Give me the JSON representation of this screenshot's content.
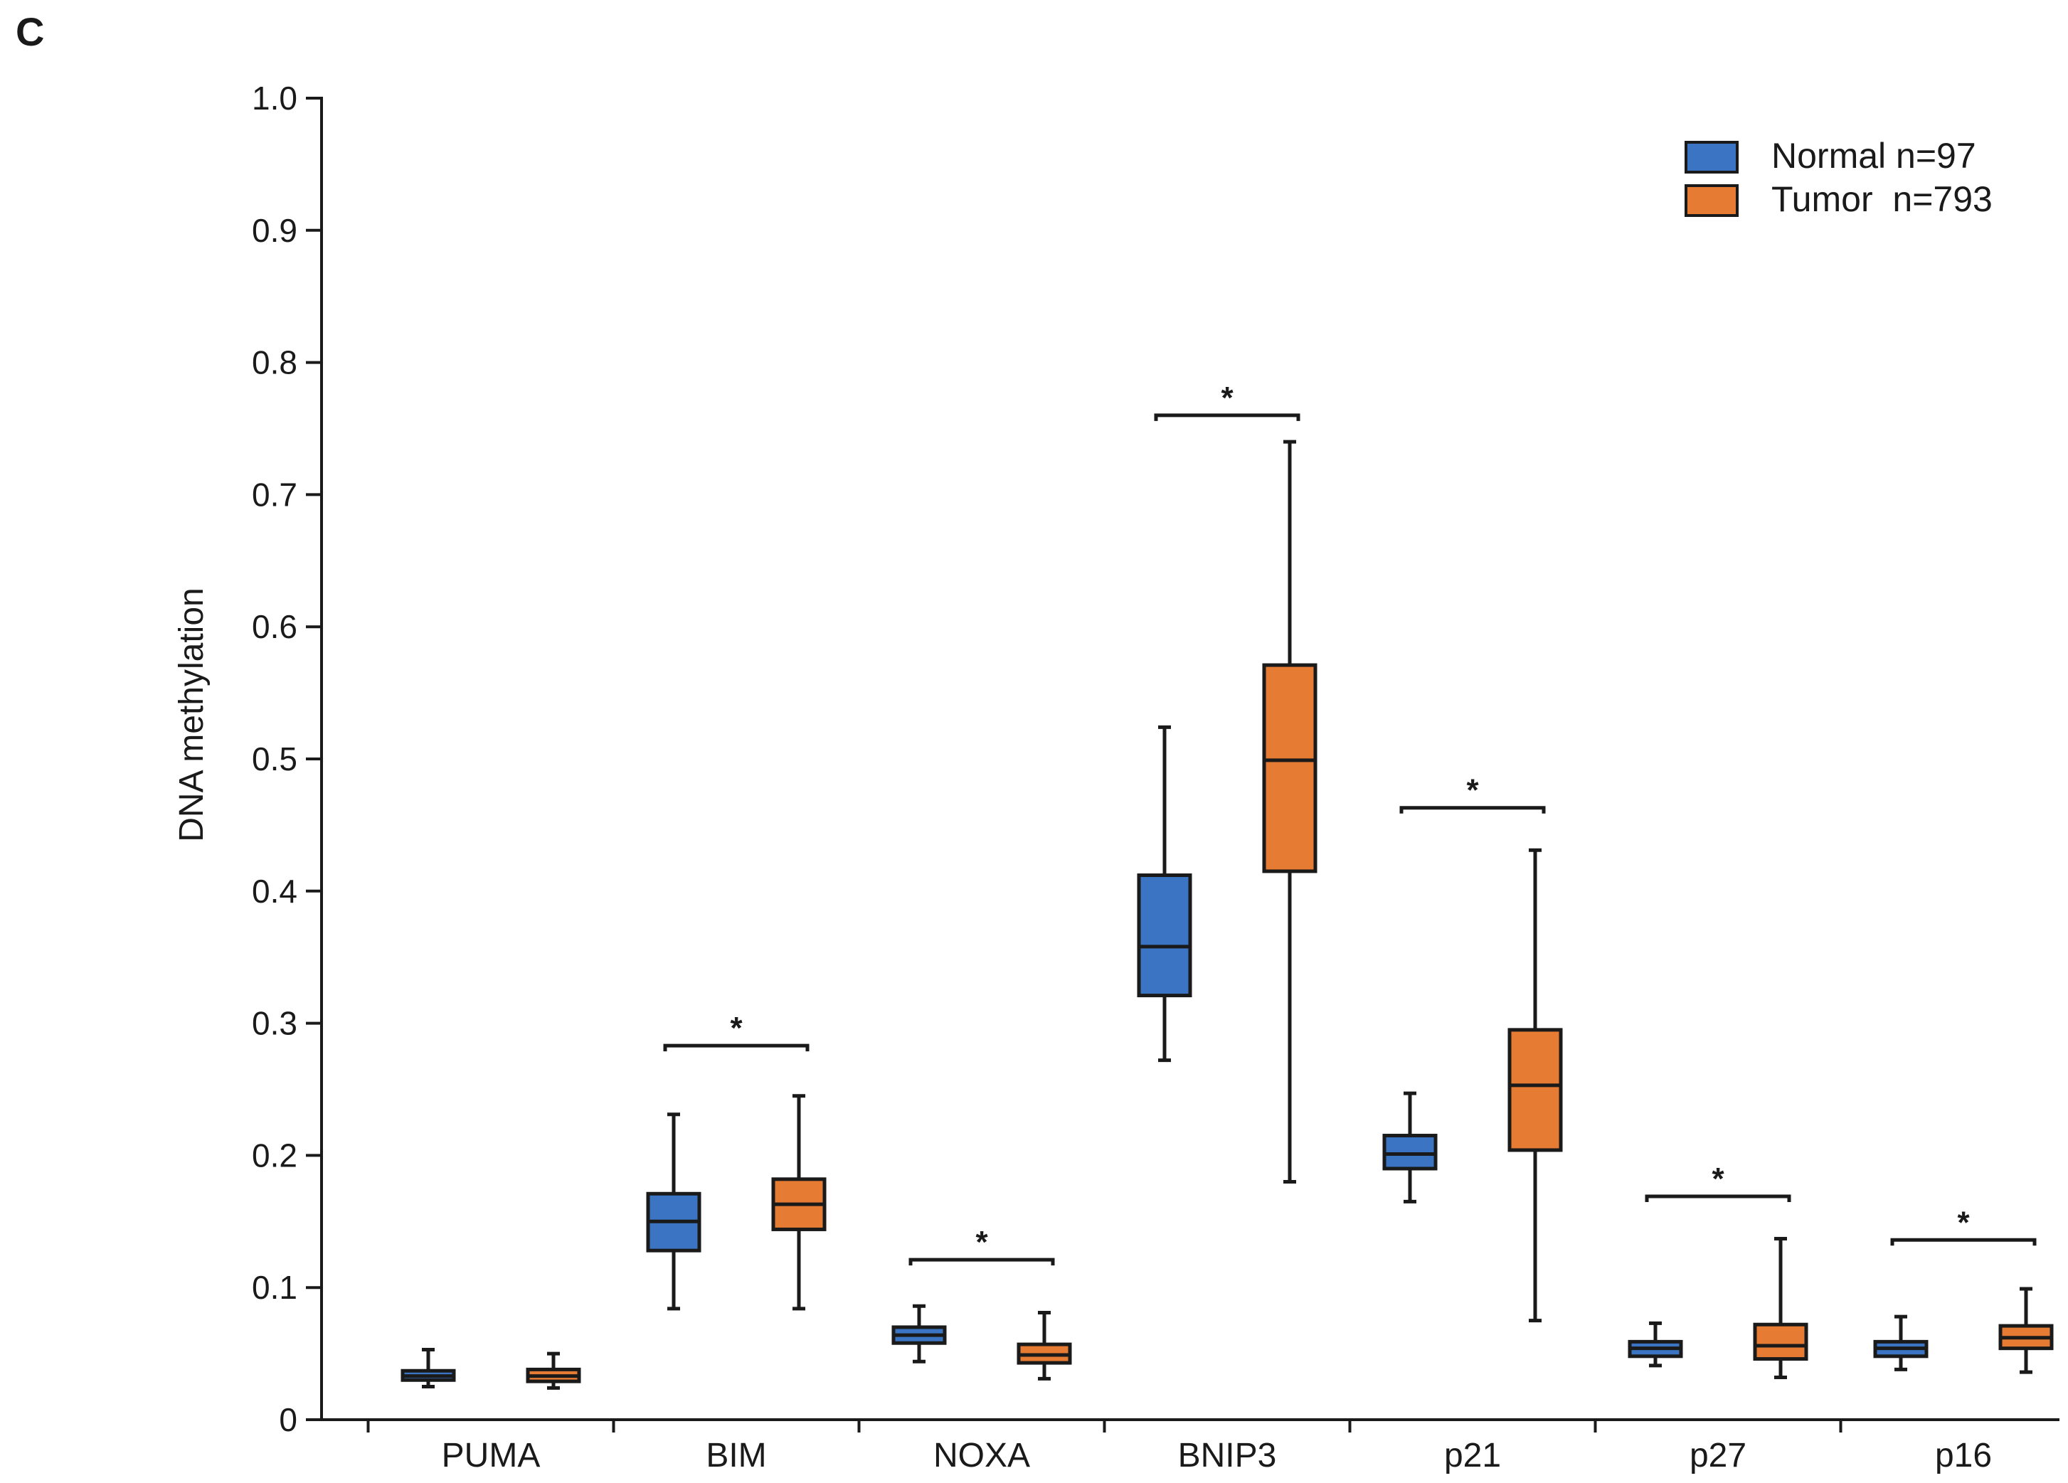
{
  "panel_label": "C",
  "chart_data": {
    "type": "box",
    "title": "",
    "xlabel": "",
    "ylabel": "DNA methylation",
    "ylim": [
      0,
      1.0
    ],
    "yticks": [
      "0",
      "0.1",
      "0.2",
      "0.3",
      "0.4",
      "0.5",
      "0.6",
      "0.7",
      "0.8",
      "0.9",
      "1.0"
    ],
    "ytick_values": [
      0,
      0.1,
      0.2,
      0.3,
      0.4,
      0.5,
      0.6,
      0.7,
      0.8,
      0.9,
      1.0
    ],
    "categories": [
      "PUMA",
      "BIM",
      "NOXA",
      "BNIP3",
      "p21",
      "p27",
      "p16"
    ],
    "legend_position": "top-right",
    "series": [
      {
        "name": "Normal",
        "legend_label": "Normal n=97",
        "color": "#3b74c2",
        "boxes": [
          {
            "min": 0.025,
            "q1": 0.03,
            "median": 0.033,
            "q3": 0.037,
            "max": 0.053
          },
          {
            "min": 0.084,
            "q1": 0.128,
            "median": 0.15,
            "q3": 0.171,
            "max": 0.231
          },
          {
            "min": 0.044,
            "q1": 0.058,
            "median": 0.064,
            "q3": 0.07,
            "max": 0.086
          },
          {
            "min": 0.272,
            "q1": 0.321,
            "median": 0.358,
            "q3": 0.412,
            "max": 0.524
          },
          {
            "min": 0.165,
            "q1": 0.19,
            "median": 0.201,
            "q3": 0.215,
            "max": 0.247
          },
          {
            "min": 0.041,
            "q1": 0.048,
            "median": 0.054,
            "q3": 0.059,
            "max": 0.073
          },
          {
            "min": 0.038,
            "q1": 0.048,
            "median": 0.054,
            "q3": 0.059,
            "max": 0.078
          }
        ]
      },
      {
        "name": "Tumor",
        "legend_label": "Tumor  n=793",
        "color": "#e67b33",
        "boxes": [
          {
            "min": 0.024,
            "q1": 0.029,
            "median": 0.033,
            "q3": 0.038,
            "max": 0.05
          },
          {
            "min": 0.084,
            "q1": 0.144,
            "median": 0.163,
            "q3": 0.182,
            "max": 0.245
          },
          {
            "min": 0.031,
            "q1": 0.043,
            "median": 0.049,
            "q3": 0.057,
            "max": 0.081
          },
          {
            "min": 0.18,
            "q1": 0.415,
            "median": 0.499,
            "q3": 0.571,
            "max": 0.74
          },
          {
            "min": 0.075,
            "q1": 0.204,
            "median": 0.253,
            "q3": 0.295,
            "max": 0.431
          },
          {
            "min": 0.032,
            "q1": 0.046,
            "median": 0.056,
            "q3": 0.072,
            "max": 0.137
          },
          {
            "min": 0.036,
            "q1": 0.054,
            "median": 0.062,
            "q3": 0.071,
            "max": 0.099
          }
        ]
      }
    ],
    "significance": [
      {
        "category": "BIM",
        "y": 0.283,
        "label": "*"
      },
      {
        "category": "NOXA",
        "y": 0.121,
        "label": "*"
      },
      {
        "category": "BNIP3",
        "y": 0.76,
        "label": "*"
      },
      {
        "category": "p21",
        "y": 0.463,
        "label": "*"
      },
      {
        "category": "p27",
        "y": 0.169,
        "label": "*"
      },
      {
        "category": "p16",
        "y": 0.136,
        "label": "*"
      }
    ]
  }
}
